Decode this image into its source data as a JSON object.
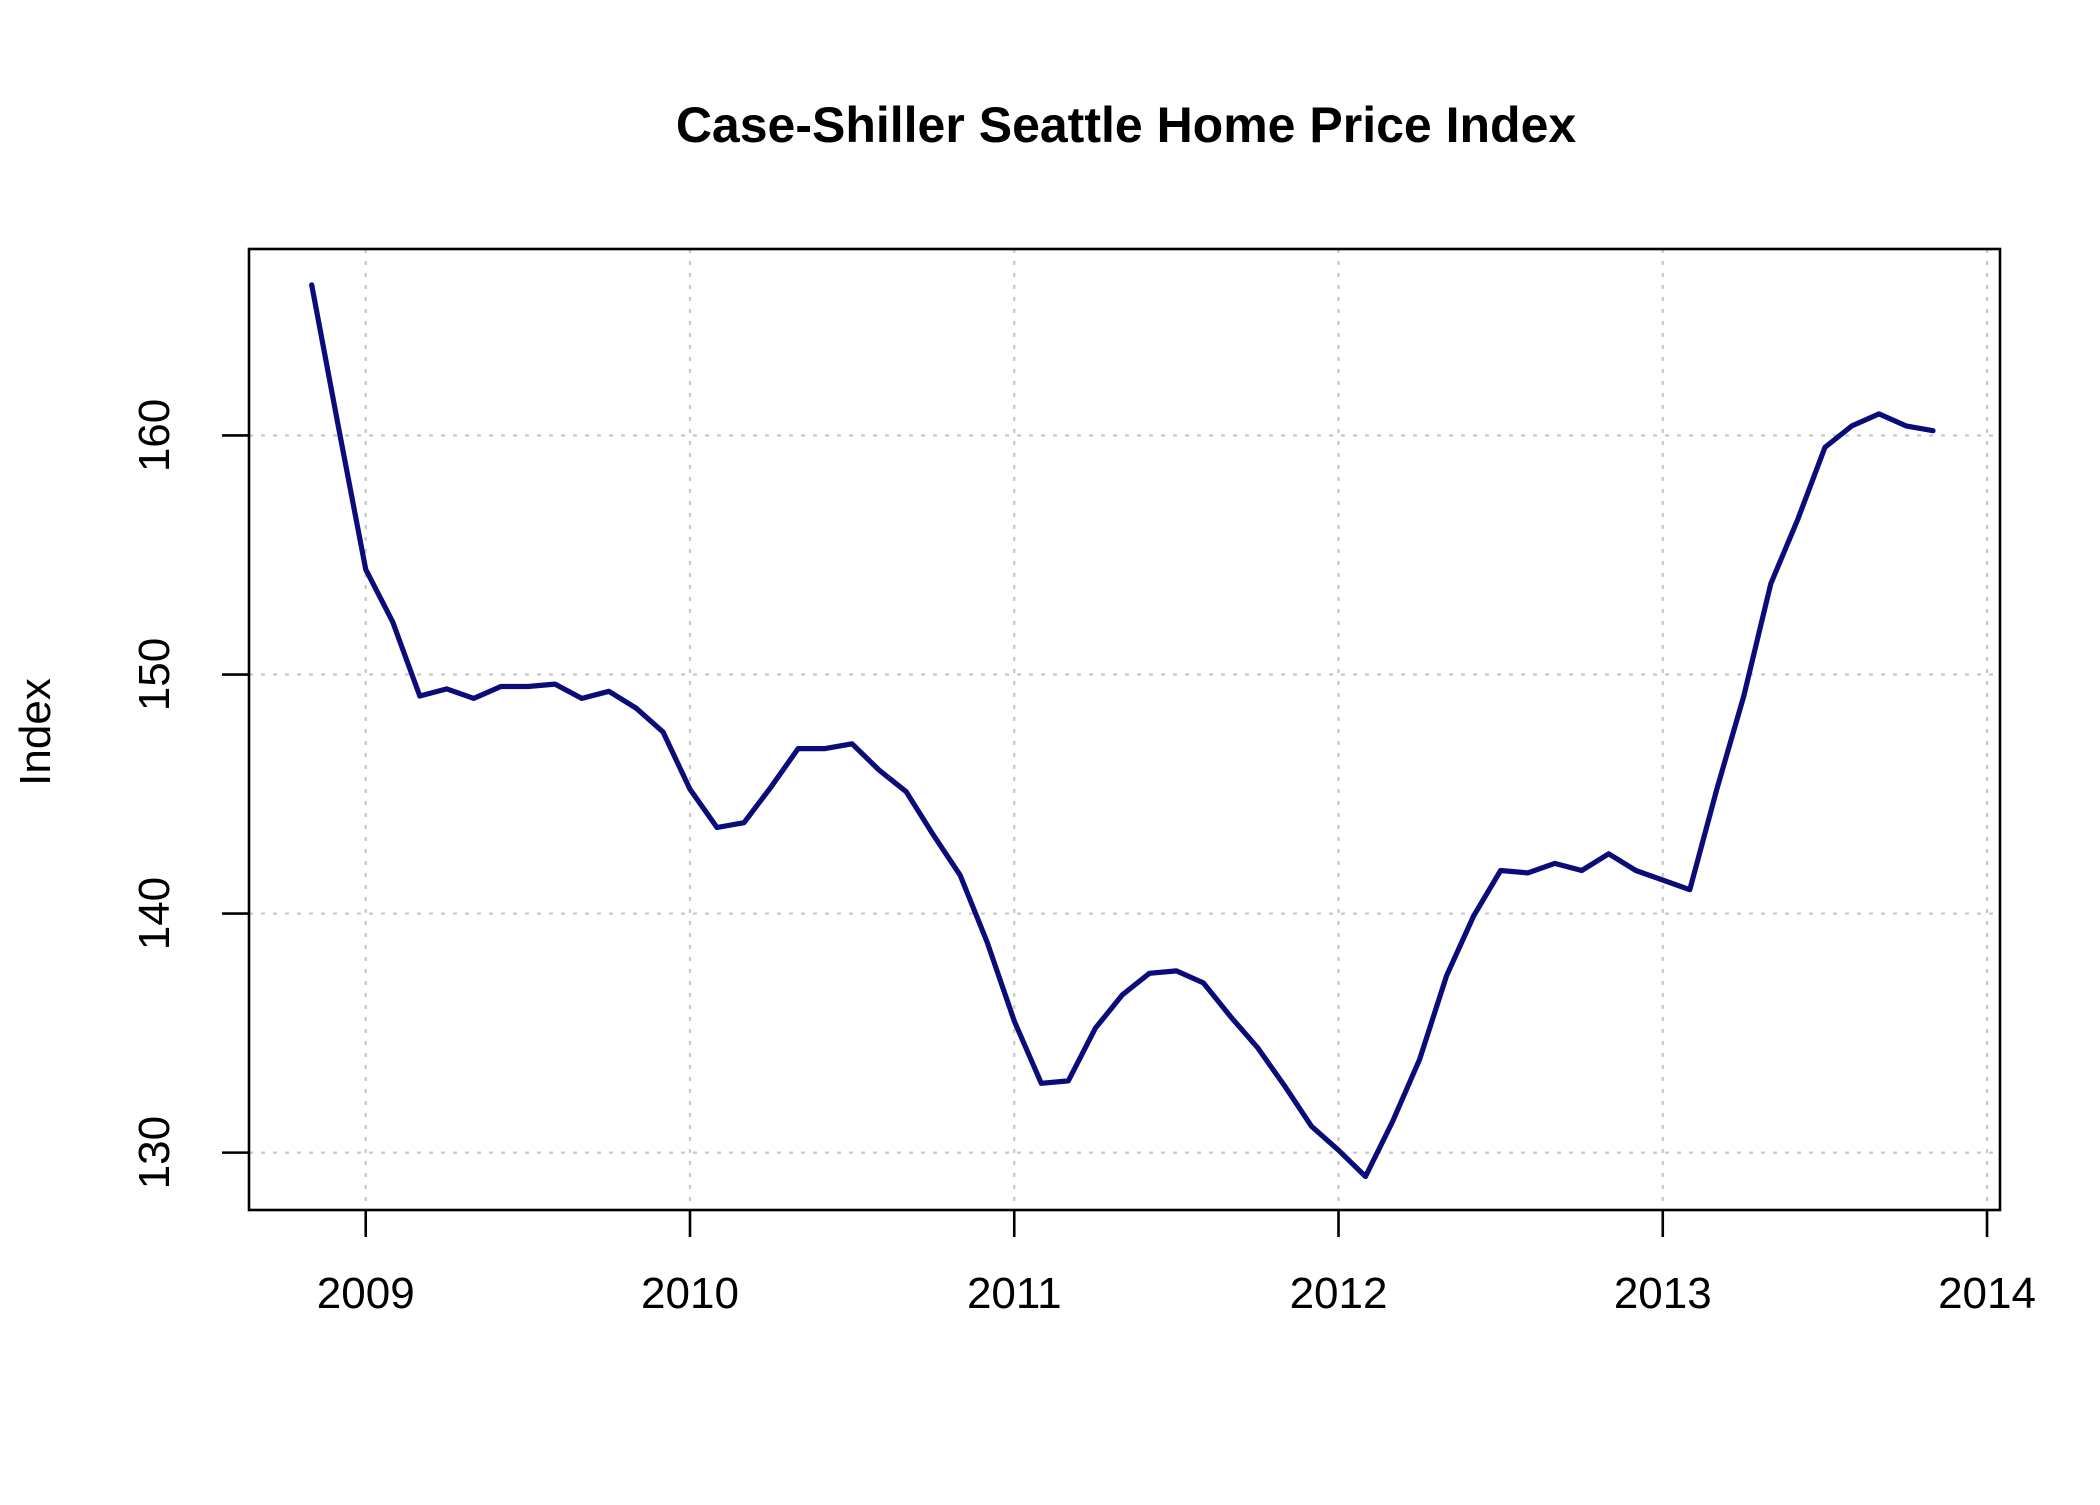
{
  "chart_data": {
    "type": "line",
    "title": "Case-Shiller Seattle Home Price Index",
    "xlabel": "",
    "ylabel": "Index",
    "xlim": [
      2008.64,
      2014.04
    ],
    "ylim": [
      127.6,
      167.8
    ],
    "x_ticks": [
      "2009",
      "2010",
      "2011",
      "2012",
      "2013",
      "2014"
    ],
    "y_ticks": [
      "130",
      "140",
      "150",
      "160"
    ],
    "grid": true,
    "grid_style": "dotted",
    "line_color": "#0b0b7a",
    "series": [
      {
        "x": [
          2008.8333,
          2008.9167,
          2009.0,
          2009.0833,
          2009.1667,
          2009.25,
          2009.3333,
          2009.4167,
          2009.5,
          2009.5833,
          2009.6667,
          2009.75,
          2009.8333,
          2009.9167,
          2010.0,
          2010.0833,
          2010.1667,
          2010.25,
          2010.3333,
          2010.4167,
          2010.5,
          2010.5833,
          2010.6667,
          2010.75,
          2010.8333,
          2010.9167,
          2011.0,
          2011.0833,
          2011.1667,
          2011.25,
          2011.3333,
          2011.4167,
          2011.5,
          2011.5833,
          2011.6667,
          2011.75,
          2011.8333,
          2011.9167,
          2012.0,
          2012.0833,
          2012.1667,
          2012.25,
          2012.3333,
          2012.4167,
          2012.5,
          2012.5833,
          2012.6667,
          2012.75,
          2012.8333,
          2012.9167,
          2013.0,
          2013.0833,
          2013.1667,
          2013.25,
          2013.3333,
          2013.4167,
          2013.5,
          2013.5833,
          2013.6667,
          2013.75,
          2013.8333
        ],
        "values": [
          166.3,
          160.3,
          154.4,
          152.2,
          149.1,
          149.4,
          149.0,
          149.5,
          149.5,
          149.6,
          149.0,
          149.3,
          148.6,
          147.6,
          145.2,
          143.6,
          143.8,
          145.3,
          146.9,
          146.9,
          147.1,
          146.0,
          145.1,
          143.3,
          141.6,
          138.8,
          135.5,
          132.9,
          133.0,
          135.2,
          136.6,
          137.5,
          137.6,
          137.1,
          135.7,
          134.4,
          132.8,
          131.1,
          130.1,
          129.0,
          131.3,
          133.9,
          137.4,
          139.9,
          141.8,
          141.7,
          142.1,
          141.8,
          142.5,
          141.8,
          141.4,
          141.0,
          145.2,
          149.1,
          153.8,
          156.5,
          159.5,
          160.4,
          160.9,
          160.4,
          160.2
        ]
      }
    ]
  }
}
